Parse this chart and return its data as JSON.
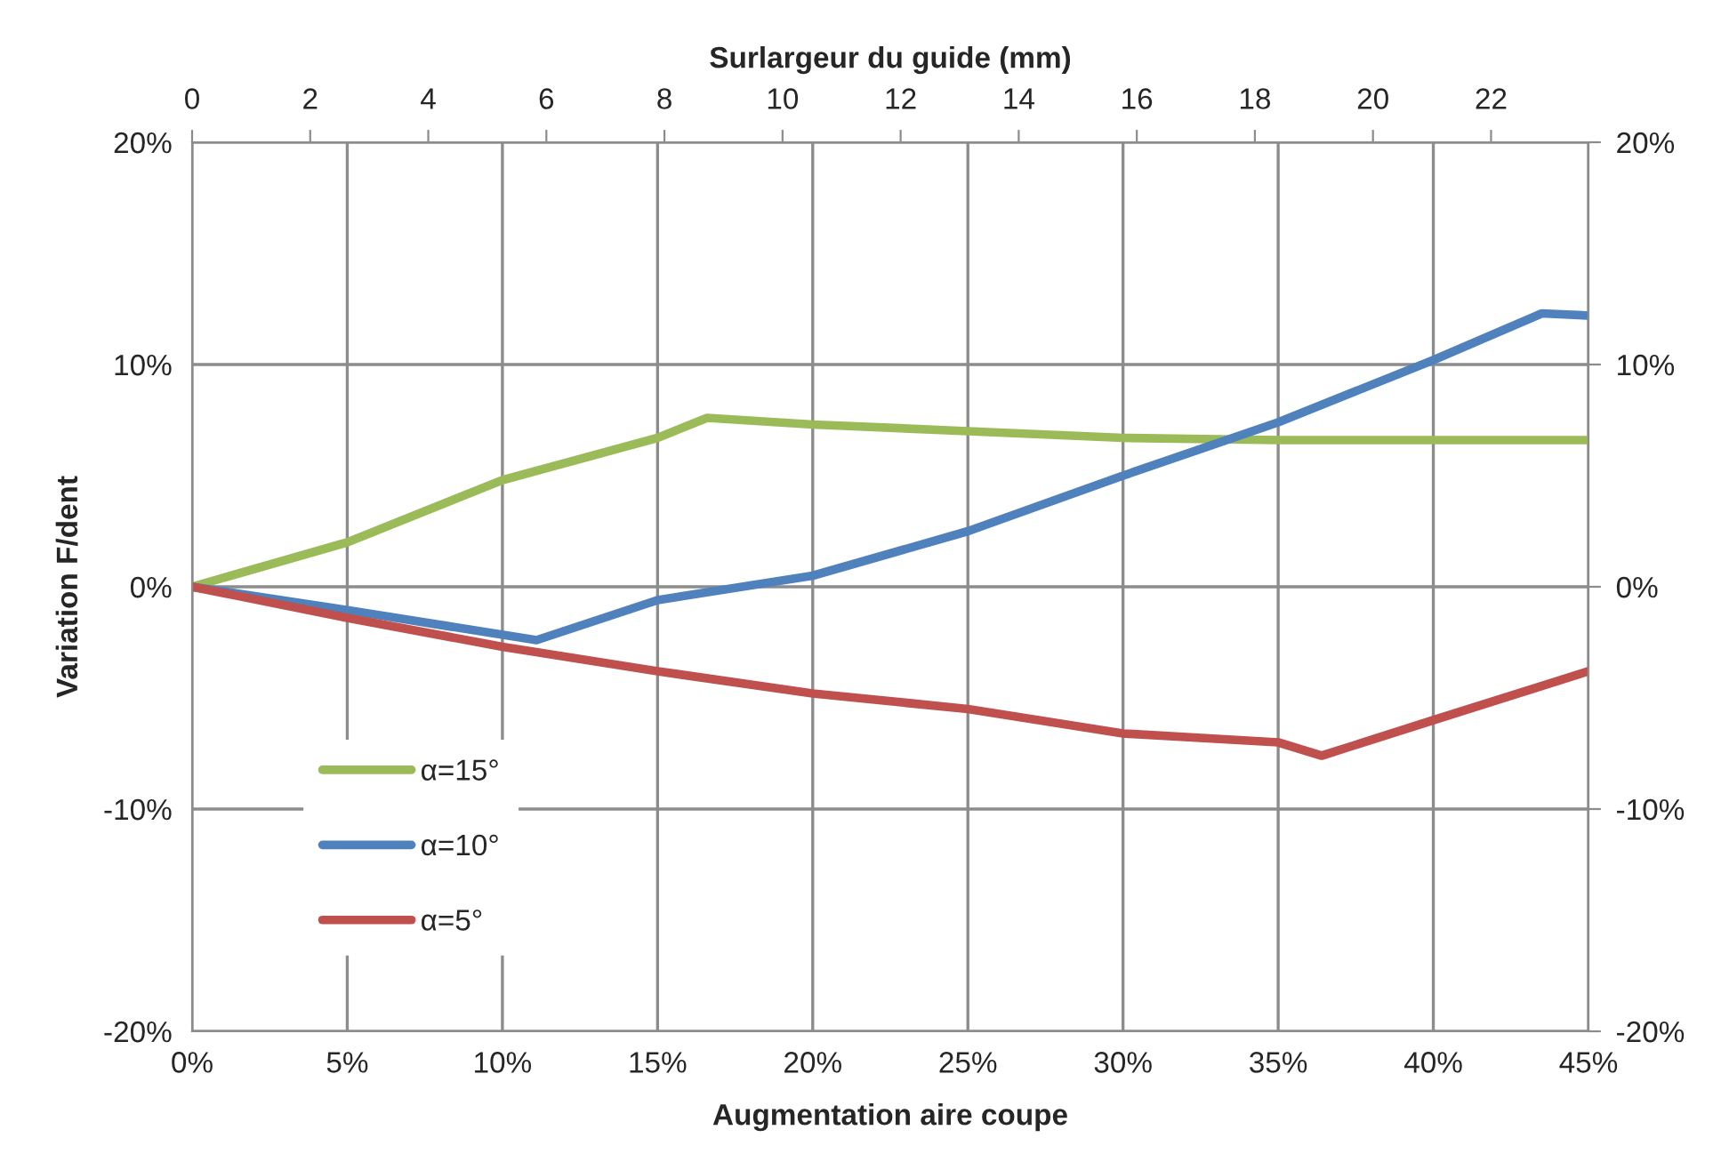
{
  "chart_data": {
    "type": "line",
    "xlabel": "Augmentation aire coupe",
    "ylabel": "Variation F/dent",
    "x2label": "Surlargeur du guide (mm)",
    "xlim": [
      0,
      45
    ],
    "xticks": [
      {
        "value": 0,
        "label": "0%"
      },
      {
        "value": 5,
        "label": "5%"
      },
      {
        "value": 10,
        "label": "10%"
      },
      {
        "value": 15,
        "label": "15%"
      },
      {
        "value": 20,
        "label": "20%"
      },
      {
        "value": 25,
        "label": "25%"
      },
      {
        "value": 30,
        "label": "30%"
      },
      {
        "value": 35,
        "label": "35%"
      },
      {
        "value": 40,
        "label": "40%"
      },
      {
        "value": 45,
        "label": "45%"
      }
    ],
    "ylim": [
      -20,
      20
    ],
    "yticks": [
      {
        "value": -20,
        "label": "-20%"
      },
      {
        "value": -10,
        "label": "-10%"
      },
      {
        "value": 0,
        "label": "0%"
      },
      {
        "value": 10,
        "label": "10%"
      },
      {
        "value": 20,
        "label": "20%"
      }
    ],
    "y2lim": [
      -20,
      20
    ],
    "y2ticks": [
      {
        "value": -20,
        "label": "-20%"
      },
      {
        "value": -10,
        "label": "-10%"
      },
      {
        "value": 0,
        "label": "0%"
      },
      {
        "value": 10,
        "label": "10%"
      },
      {
        "value": 20,
        "label": "20%"
      }
    ],
    "x2lim": [
      0,
      23.65
    ],
    "x2ticks": [
      0,
      2,
      4,
      6,
      8,
      10,
      12,
      14,
      16,
      18,
      20,
      22
    ],
    "grid": true,
    "legend": "bottom left",
    "line_style": "solid",
    "marker": "none",
    "series": [
      {
        "name": "α=15°",
        "color": "#9bbb59",
        "x": [
          0,
          5,
          10,
          15,
          16.6,
          20,
          25,
          30,
          35,
          40,
          45
        ],
        "values": [
          0,
          2.0,
          4.8,
          6.7,
          7.6,
          7.3,
          7.0,
          6.7,
          6.6,
          6.6,
          6.6
        ]
      },
      {
        "name": "α=10°",
        "color": "#4f81bd",
        "x": [
          0,
          5,
          11.1,
          15,
          20,
          25,
          30,
          35,
          40,
          43.5,
          45
        ],
        "values": [
          0,
          -1.05,
          -2.4,
          -0.6,
          0.5,
          2.5,
          5.0,
          7.4,
          10.2,
          12.3,
          12.2
        ]
      },
      {
        "name": "α=5°",
        "color": "#c0504d",
        "x": [
          0,
          5,
          10,
          15,
          20,
          25,
          30,
          35,
          36.4,
          40,
          45
        ],
        "values": [
          0,
          -1.4,
          -2.7,
          -3.8,
          -4.8,
          -5.5,
          -6.6,
          -7.0,
          -7.6,
          -6.0,
          -3.8
        ]
      }
    ]
  }
}
